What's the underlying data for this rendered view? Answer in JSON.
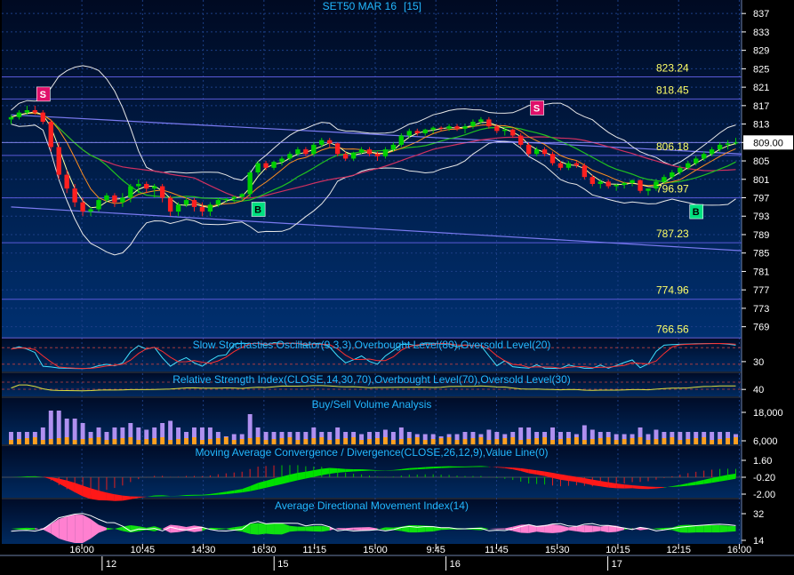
{
  "chart_data": {
    "type": "candlestick",
    "title": "SET50 MAR 16",
    "interval": "[15]",
    "price_axis": {
      "ylim": [
        767,
        838
      ],
      "ticks": [
        769,
        773,
        777,
        781,
        785,
        789,
        793,
        797,
        801,
        805,
        809,
        813,
        817,
        821,
        825,
        829,
        833,
        837
      ],
      "last_price": "809.00"
    },
    "levels": [
      {
        "label": "823.24",
        "value": 823.24
      },
      {
        "label": "818.45",
        "value": 818.45
      },
      {
        "label": "806.18",
        "value": 806.18
      },
      {
        "label": "796.97",
        "value": 796.97
      },
      {
        "label": "787.23",
        "value": 787.23
      },
      {
        "label": "774.96",
        "value": 774.96
      },
      {
        "label": "766.56",
        "value": 766.56
      }
    ],
    "signals": [
      {
        "label": "S",
        "type": "sell",
        "bar": 4,
        "price": 819.5
      },
      {
        "label": "B",
        "type": "buy",
        "bar": 31,
        "price": 794.5
      },
      {
        "label": "S",
        "type": "sell",
        "bar": 66,
        "price": 816.5
      },
      {
        "label": "B",
        "type": "buy",
        "bar": 86,
        "price": 794.0
      }
    ],
    "trendlines": [
      {
        "from": [
          0,
          815.0
        ],
        "to": [
          92,
          806.5
        ]
      },
      {
        "from": [
          0,
          795.0
        ],
        "to": [
          92,
          785.5
        ]
      }
    ],
    "candles": [
      [
        814,
        815,
        813,
        814.5
      ],
      [
        814.5,
        816,
        814,
        815.5
      ],
      [
        815.5,
        817,
        815,
        816
      ],
      [
        816,
        817,
        815,
        815.5
      ],
      [
        815.5,
        816,
        813,
        813.5
      ],
      [
        813.5,
        814,
        807,
        808
      ],
      [
        808,
        809,
        801,
        802
      ],
      [
        802,
        803,
        798,
        799
      ],
      [
        799,
        800,
        795,
        796
      ],
      [
        796,
        797,
        793,
        794
      ],
      [
        794,
        795,
        793,
        794.5
      ],
      [
        794.5,
        797,
        794,
        796.5
      ],
      [
        796.5,
        798,
        796,
        797.5
      ],
      [
        797.5,
        798,
        795,
        796
      ],
      [
        796,
        798,
        795,
        797
      ],
      [
        797,
        800,
        796,
        799.5
      ],
      [
        799.5,
        801,
        798,
        800
      ],
      [
        800,
        800.5,
        798,
        799
      ],
      [
        799,
        800,
        797,
        799.5
      ],
      [
        799.5,
        800,
        796,
        797
      ],
      [
        797,
        797.5,
        793,
        794
      ],
      [
        794,
        796,
        793,
        795.5
      ],
      [
        795.5,
        797,
        795,
        796.5
      ],
      [
        796.5,
        797,
        794,
        795
      ],
      [
        795,
        796,
        793,
        794
      ],
      [
        794,
        796,
        793,
        795.5
      ],
      [
        795.5,
        797,
        795,
        796.5
      ],
      [
        796.5,
        797,
        796,
        796.8
      ],
      [
        796.8,
        797.5,
        796,
        797.2
      ],
      [
        797.2,
        798,
        796.5,
        797.8
      ],
      [
        797.8,
        803,
        797,
        802.5
      ],
      [
        802.5,
        805,
        802,
        804.5
      ],
      [
        804.5,
        805,
        803,
        803.5
      ],
      [
        803.5,
        805,
        803,
        804.8
      ],
      [
        804.8,
        806,
        804,
        805.5
      ],
      [
        805.5,
        807,
        805,
        806.5
      ],
      [
        806.5,
        808,
        806,
        807.5
      ],
      [
        807.5,
        808,
        806,
        806.5
      ],
      [
        806.5,
        809,
        806,
        808.5
      ],
      [
        808.5,
        810,
        808,
        809.5
      ],
      [
        809.5,
        810,
        808,
        808.8
      ],
      [
        808.8,
        809,
        806,
        806.5
      ],
      [
        806.5,
        807,
        805,
        805.5
      ],
      [
        805.5,
        807,
        805,
        806.8
      ],
      [
        806.8,
        808,
        806.5,
        807.5
      ],
      [
        807.5,
        808,
        806,
        806.5
      ],
      [
        806.5,
        807,
        805,
        806
      ],
      [
        806,
        808,
        805.5,
        807.5
      ],
      [
        807.5,
        809,
        807,
        808.5
      ],
      [
        808.5,
        811,
        808,
        810.5
      ],
      [
        810.5,
        812,
        810,
        811.5
      ],
      [
        811.5,
        812,
        810.5,
        811
      ],
      [
        811,
        812,
        810.5,
        811.8
      ],
      [
        811.8,
        812.5,
        811,
        812.2
      ],
      [
        812.2,
        812.5,
        811.5,
        812
      ],
      [
        812,
        813,
        811.5,
        812.5
      ],
      [
        812.5,
        813,
        811.5,
        812
      ],
      [
        812,
        813,
        811,
        812.5
      ],
      [
        812.5,
        814,
        812,
        813.5
      ],
      [
        813.5,
        814.5,
        813,
        814
      ],
      [
        814,
        814.5,
        812,
        812.5
      ],
      [
        812.5,
        813,
        811,
        811.5
      ],
      [
        811.5,
        812,
        810.5,
        811.8
      ],
      [
        811.8,
        812,
        810,
        810.5
      ],
      [
        810.5,
        811,
        808,
        808.5
      ],
      [
        808.5,
        809,
        806,
        806.5
      ],
      [
        806.5,
        808,
        806,
        807.5
      ],
      [
        807.5,
        808,
        806,
        806.5
      ],
      [
        806.5,
        807,
        804,
        804.5
      ],
      [
        804.5,
        805,
        803,
        803.5
      ],
      [
        803.5,
        805,
        803,
        804.5
      ],
      [
        804.5,
        805,
        803.5,
        804
      ],
      [
        804,
        804.5,
        801,
        801.5
      ],
      [
        801.5,
        802,
        799.5,
        800
      ],
      [
        800,
        801,
        799,
        800.5
      ],
      [
        800.5,
        801,
        799,
        799.5
      ],
      [
        799.5,
        800,
        798.5,
        799.8
      ],
      [
        799.8,
        800.5,
        799,
        800.2
      ],
      [
        800.2,
        801,
        799.5,
        800.8
      ],
      [
        800.8,
        801,
        798,
        798.5
      ],
      [
        798.5,
        799,
        797.5,
        799
      ],
      [
        799,
        801,
        798.5,
        800.5
      ],
      [
        800.5,
        802,
        800,
        801.5
      ],
      [
        801.5,
        803,
        801,
        802.5
      ],
      [
        802.5,
        804,
        802,
        803.5
      ],
      [
        803.5,
        805,
        803,
        804.5
      ],
      [
        804.5,
        806,
        804,
        805.5
      ],
      [
        805.5,
        807,
        805,
        806.5
      ],
      [
        806.5,
        808,
        806,
        807.5
      ],
      [
        807.5,
        809,
        807,
        808.5
      ],
      [
        808.5,
        809.5,
        807.5,
        808.8
      ],
      [
        808.8,
        810,
        808.5,
        809
      ]
    ],
    "time_axis": {
      "labels": [
        {
          "bar": 7,
          "text": "16:00"
        },
        {
          "bar": 13,
          "text": "10:45"
        },
        {
          "bar": 19,
          "text": "14:30"
        },
        {
          "bar": 25,
          "text": "16:30"
        },
        {
          "bar": 30,
          "text": "11:15"
        },
        {
          "bar": 36,
          "text": "15:00"
        },
        {
          "bar": 42,
          "text": "9:45"
        },
        {
          "bar": 48,
          "text": "11:45"
        },
        {
          "bar": 54,
          "text": "15:30"
        },
        {
          "bar": 60,
          "text": "10:15"
        },
        {
          "bar": 66,
          "text": "12:15"
        },
        {
          "bar": 72,
          "text": "16:00"
        }
      ],
      "days": [
        {
          "bar": 9,
          "text": "12"
        },
        {
          "bar": 26,
          "text": "15"
        },
        {
          "bar": 43,
          "text": "16"
        },
        {
          "bar": 59,
          "text": "17"
        }
      ]
    },
    "panels": [
      {
        "name": "stochastic",
        "title": "Slow Stochastics Oscillator(9,3,3),Overbought Level(80),Oversold Level(20)",
        "ticks": [
          "30"
        ]
      },
      {
        "name": "rsi",
        "title": "Relative Strength Index(CLOSE,14,30,70),Overbought Level(70),Oversold Level(30)",
        "ticks": [
          "40"
        ]
      },
      {
        "name": "volume",
        "title": "Buy/Sell Volume Analysis",
        "ticks": [
          "18,000",
          "6,000"
        ]
      },
      {
        "name": "macd",
        "title": "Moving Average Convergence / Divergence(CLOSE,26,12,9),Value Line(0)",
        "ticks": [
          "1.60",
          "-0.20",
          "-2.00"
        ]
      },
      {
        "name": "adx",
        "title": "Average Directional Movement Index(14)",
        "ticks": [
          "32",
          "14"
        ]
      }
    ],
    "colors": {
      "background_top": "#00102e",
      "background_bottom": "#00306a",
      "grid": "#1c3f86",
      "axis_text": "#ffffff",
      "title_text": "#22b8ff",
      "level_text": "#ffff66",
      "up": "#00d000",
      "down": "#ff2020",
      "sell_badge": "#e0106a",
      "buy_badge": "#00e080"
    }
  }
}
